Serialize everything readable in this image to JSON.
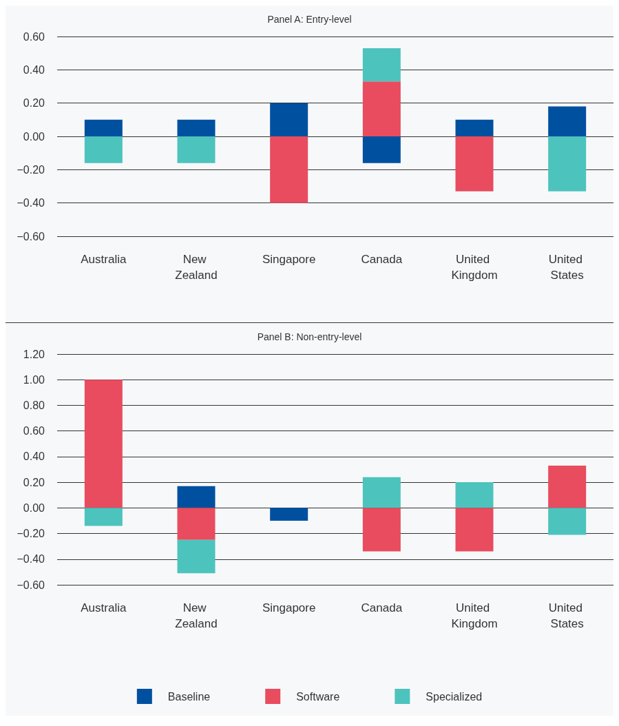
{
  "chart_data": [
    {
      "type": "bar",
      "stacked": true,
      "title": "Panel A: Entry-level",
      "categories": [
        "Australia",
        "New Zealand",
        "Singapore",
        "Canada",
        "United Kingdom",
        "United States"
      ],
      "series": [
        {
          "color": "#0050a0",
          "values": [
            0.1,
            0.1,
            0.2,
            -0.16,
            0.1,
            0.18
          ]
        },
        {
          "color": "#e84c5e",
          "values": [
            null,
            null,
            -0.4,
            0.33,
            -0.33,
            null
          ]
        },
        {
          "color": "#4dc3bd",
          "values": [
            -0.16,
            -0.16,
            null,
            0.2,
            null,
            -0.33
          ]
        }
      ],
      "ylim": [
        -0.6,
        0.6
      ],
      "yticks": [
        {
          "value": -0.6,
          "label": "−0.60"
        },
        {
          "value": -0.4,
          "label": "−0.40"
        },
        {
          "value": -0.2,
          "label": "−0.20"
        },
        {
          "value": 0,
          "label": "0.00"
        },
        {
          "value": 0.2,
          "label": "0.20"
        },
        {
          "value": 0.4,
          "label": "0.40"
        },
        {
          "value": 0.6,
          "label": "0.60"
        }
      ],
      "grid": "y"
    },
    {
      "type": "bar",
      "stacked": true,
      "title": "Panel B: Non-entry-level",
      "categories": [
        "Australia",
        "New Zealand",
        "Singapore",
        "Canada",
        "United Kingdom",
        "United States"
      ],
      "series": [
        {
          "name": "Baseline",
          "color": "#0050a0",
          "values": [
            null,
            0.17,
            -0.1,
            null,
            null,
            null
          ]
        },
        {
          "name": "Software",
          "color": "#e84c5e",
          "values": [
            1.0,
            -0.25,
            null,
            -0.34,
            -0.34,
            0.33
          ]
        },
        {
          "name": "Specialized",
          "color": "#4dc3bd",
          "values": [
            -0.14,
            -0.26,
            null,
            0.24,
            0.2,
            -0.21
          ]
        }
      ],
      "ylim": [
        -0.6,
        1.2
      ],
      "yticks": [
        {
          "value": -0.6,
          "label": "−0.60"
        },
        {
          "value": -0.4,
          "label": "−0.40"
        },
        {
          "value": -0.2,
          "label": "−0.20"
        },
        {
          "value": 0,
          "label": "0.00"
        },
        {
          "value": 0.2,
          "label": "0.20"
        },
        {
          "value": 0.4,
          "label": "0.40"
        },
        {
          "value": 0.6,
          "label": "0.60"
        },
        {
          "value": 0.8,
          "label": "0.80"
        },
        {
          "value": 1.0,
          "label": "1.00"
        },
        {
          "value": 1.2,
          "label": "1.20"
        }
      ],
      "grid": "y",
      "legend": "bottom"
    }
  ]
}
